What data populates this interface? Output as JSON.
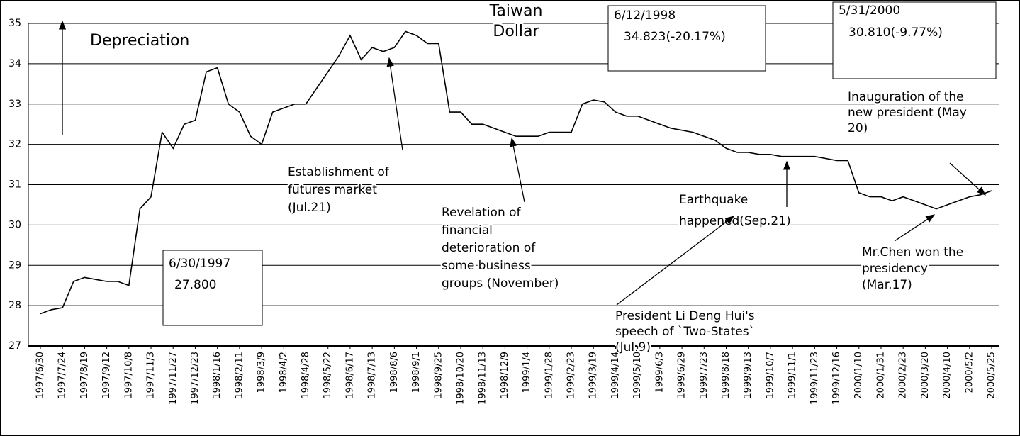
{
  "chart_data": {
    "type": "line",
    "categories": [
      "1997/6/30",
      null,
      "1997/7/24",
      null,
      "1997/8/19",
      null,
      "1997/9/12",
      null,
      "1997/10/8",
      null,
      "1997/11/3",
      null,
      "1997/11/27",
      null,
      "1997/12/23",
      null,
      "1998/1/16",
      null,
      "1998/2/11",
      null,
      "1998/3/9",
      null,
      "1998/4/2",
      null,
      "1998/4/28",
      null,
      "1998/5/22",
      null,
      "1998/6/17",
      null,
      "1998/7/13",
      null,
      "1998/8/6",
      null,
      "1998/9/1",
      null,
      "1998/9/25",
      null,
      "1998/10/20",
      null,
      "1998/11/13",
      null,
      "1998/12/9",
      null,
      "1999/1/4",
      null,
      "1999/1/28",
      null,
      "1999/2/23",
      null,
      "1999/3/19",
      null,
      "1999/4/14",
      null,
      "1999/5/10",
      null,
      "1999/6/3",
      null,
      "1999/6/29",
      null,
      "1999/7/23",
      null,
      "1999/8/18",
      null,
      "1999/9/13",
      null,
      "1999/10/7",
      null,
      "1999/11/1",
      null,
      "1999/11/23",
      null,
      "1999/12/16",
      null,
      "2000/1/10",
      null,
      "2000/1/31",
      null,
      "2000/2/23",
      null,
      "2000/3/20",
      null,
      "2000/4/10",
      null,
      "2000/5/2",
      null,
      "2000/5/25"
    ],
    "values": [
      27.8,
      27.9,
      27.95,
      28.6,
      28.7,
      28.65,
      28.6,
      28.6,
      28.5,
      30.4,
      30.7,
      32.3,
      31.9,
      32.5,
      32.6,
      33.8,
      33.9,
      33.0,
      32.8,
      32.2,
      32.0,
      32.8,
      32.9,
      33.0,
      33.0,
      33.4,
      33.8,
      34.2,
      34.7,
      34.1,
      34.4,
      34.3,
      34.4,
      34.8,
      34.7,
      34.5,
      34.5,
      32.8,
      32.8,
      32.5,
      32.5,
      32.4,
      32.3,
      32.2,
      32.2,
      32.2,
      32.3,
      32.3,
      32.3,
      33.0,
      33.1,
      33.05,
      32.8,
      32.7,
      32.7,
      32.6,
      32.5,
      32.4,
      32.35,
      32.3,
      32.2,
      32.1,
      31.9,
      31.8,
      31.8,
      31.75,
      31.75,
      31.7,
      31.7,
      31.7,
      31.7,
      31.65,
      31.6,
      31.6,
      30.8,
      30.7,
      30.7,
      30.6,
      30.7,
      30.6,
      30.5,
      30.4,
      30.5,
      30.6,
      30.7,
      30.75,
      30.85
    ],
    "color": "#000000",
    "ylim": [
      27,
      35
    ],
    "yticks": [
      27,
      28,
      29,
      30,
      31,
      32,
      33,
      34,
      35
    ],
    "grid": true,
    "annotations": [
      {
        "lines": [
          "Depreciation"
        ]
      },
      {
        "lines": [
          "Taiwan",
          "Dollar"
        ]
      },
      {
        "lines": [
          "6/12/1998",
          "34.823(-20.17%)"
        ]
      },
      {
        "lines": [
          "5/31/2000",
          "30.810(-9.77%)"
        ]
      },
      {
        "lines": [
          "6/30/1997",
          "27.800"
        ]
      },
      {
        "lines": [
          "Inauguration of the",
          "new president (May",
          "20)"
        ]
      },
      {
        "lines": [
          "Establishment of",
          "futures market",
          "(Jul.21)"
        ]
      },
      {
        "lines": [
          "Revelation of",
          "financial",
          "deterioration of",
          "some business",
          "groups (November)"
        ]
      },
      {
        "lines": [
          "Earthquake",
          "happened(Sep.21)"
        ]
      },
      {
        "lines": [
          "President Li Deng Hui's",
          "speech of `Two-States`",
          "(Jul.9)"
        ]
      },
      {
        "lines": [
          "Mr.Chen won the",
          "presidency",
          "(Mar.17)"
        ]
      }
    ]
  }
}
